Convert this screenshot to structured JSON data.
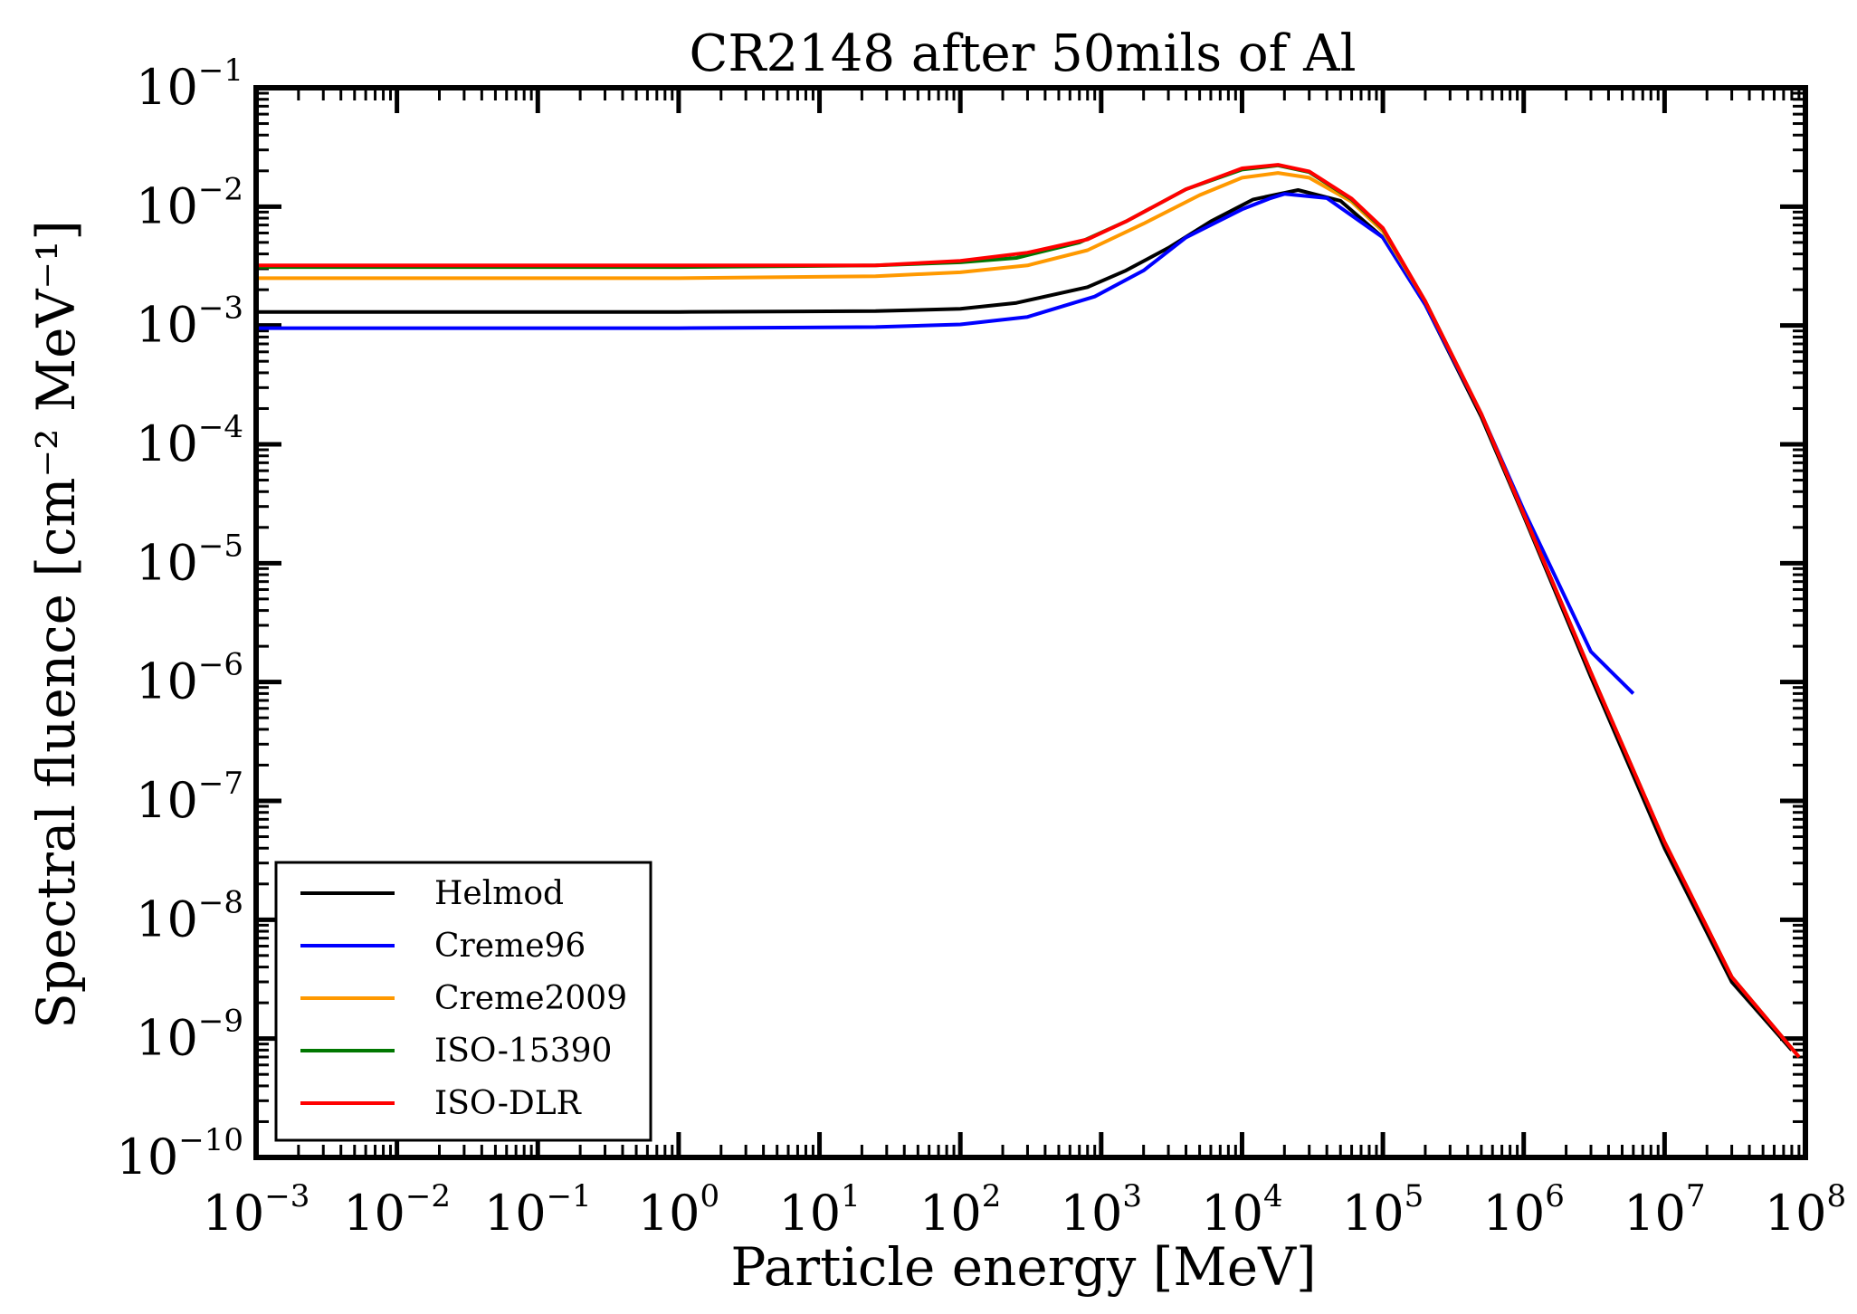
{
  "chart_data": {
    "type": "line",
    "title": "CR2148 after 50mils of Al",
    "xlabel": "Particle energy [MeV]",
    "ylabel": "Spectral fluence [cm⁻² MeV⁻¹]",
    "x_scale": "log",
    "y_scale": "log",
    "xlim": [
      0.001,
      100000000
    ],
    "ylim": [
      1e-10,
      0.1
    ],
    "x_ticks": [
      {
        "base": "10",
        "exp": "−3",
        "value": 0.001
      },
      {
        "base": "10",
        "exp": "−2",
        "value": 0.01
      },
      {
        "base": "10",
        "exp": "−1",
        "value": 0.1
      },
      {
        "base": "10",
        "exp": "0",
        "value": 1
      },
      {
        "base": "10",
        "exp": "1",
        "value": 10
      },
      {
        "base": "10",
        "exp": "2",
        "value": 100
      },
      {
        "base": "10",
        "exp": "3",
        "value": 1000
      },
      {
        "base": "10",
        "exp": "4",
        "value": 10000
      },
      {
        "base": "10",
        "exp": "5",
        "value": 100000
      },
      {
        "base": "10",
        "exp": "6",
        "value": 1000000
      },
      {
        "base": "10",
        "exp": "7",
        "value": 10000000
      },
      {
        "base": "10",
        "exp": "8",
        "value": 100000000
      }
    ],
    "y_ticks": [
      {
        "base": "10",
        "exp": "−1",
        "value": 0.1
      },
      {
        "base": "10",
        "exp": "−2",
        "value": 0.01
      },
      {
        "base": "10",
        "exp": "−3",
        "value": 0.001
      },
      {
        "base": "10",
        "exp": "−4",
        "value": 0.0001
      },
      {
        "base": "10",
        "exp": "−5",
        "value": 1e-05
      },
      {
        "base": "10",
        "exp": "−6",
        "value": 1e-06
      },
      {
        "base": "10",
        "exp": "−7",
        "value": 1e-07
      },
      {
        "base": "10",
        "exp": "−8",
        "value": 1e-08
      },
      {
        "base": "10",
        "exp": "−9",
        "value": 1e-09
      },
      {
        "base": "10",
        "exp": "−10",
        "value": 1e-10
      }
    ],
    "grid": false,
    "legend_position": "bottom-left",
    "series": [
      {
        "name": "Helmod",
        "color": "#000000",
        "points": [
          [
            0.001,
            0.0013
          ],
          [
            1,
            0.0013
          ],
          [
            25,
            0.00132
          ],
          [
            100,
            0.00138
          ],
          [
            250,
            0.00155
          ],
          [
            800,
            0.0021
          ],
          [
            1500,
            0.0029
          ],
          [
            3000,
            0.0045
          ],
          [
            6000,
            0.0075
          ],
          [
            12000,
            0.0115
          ],
          [
            25000,
            0.0138
          ],
          [
            50000,
            0.0112
          ],
          [
            100000,
            0.0055
          ],
          [
            200000,
            0.0015
          ],
          [
            500000,
            0.00017
          ],
          [
            1000000,
            2.5e-05
          ],
          [
            3000000,
            1.1e-06
          ],
          [
            10000000,
            4e-08
          ],
          [
            30000000,
            3e-09
          ],
          [
            80000000,
            8e-10
          ]
        ]
      },
      {
        "name": "Creme96",
        "color": "#0000ff",
        "points": [
          [
            0.001,
            0.00095
          ],
          [
            1,
            0.00095
          ],
          [
            25,
            0.00097
          ],
          [
            100,
            0.00102
          ],
          [
            300,
            0.00118
          ],
          [
            900,
            0.00175
          ],
          [
            2000,
            0.0029
          ],
          [
            4000,
            0.0055
          ],
          [
            10000,
            0.0095
          ],
          [
            16000,
            0.0118
          ],
          [
            20000,
            0.0128
          ],
          [
            40000,
            0.0118
          ],
          [
            100000,
            0.0055
          ],
          [
            200000,
            0.0015
          ],
          [
            500000,
            0.00018
          ],
          [
            1000000,
            2.8e-05
          ],
          [
            3000000,
            1.8e-06
          ],
          [
            6000000,
            8e-07
          ]
        ]
      },
      {
        "name": "Creme2009",
        "color": "#ff9900",
        "points": [
          [
            0.001,
            0.0025
          ],
          [
            1,
            0.0025
          ],
          [
            25,
            0.0026
          ],
          [
            100,
            0.0028
          ],
          [
            300,
            0.0032
          ],
          [
            800,
            0.0043
          ],
          [
            2000,
            0.0072
          ],
          [
            5000,
            0.0125
          ],
          [
            10000,
            0.0175
          ],
          [
            18000,
            0.0192
          ],
          [
            30000,
            0.0175
          ],
          [
            60000,
            0.011
          ],
          [
            100000,
            0.0062
          ],
          [
            200000,
            0.0016
          ],
          [
            500000,
            0.00018
          ],
          [
            1000000,
            2.6e-05
          ],
          [
            3000000,
            1.2e-06
          ],
          [
            10000000,
            4.5e-08
          ],
          [
            30000000,
            3.3e-09
          ],
          [
            90000000,
            7e-10
          ]
        ]
      },
      {
        "name": "ISO-15390",
        "color": "#007700",
        "points": [
          [
            0.001,
            0.0031
          ],
          [
            1,
            0.0031
          ],
          [
            25,
            0.0032
          ],
          [
            100,
            0.0034
          ],
          [
            250,
            0.0037
          ],
          [
            700,
            0.005
          ],
          [
            1500,
            0.0075
          ],
          [
            4000,
            0.014
          ],
          [
            10000,
            0.0205
          ],
          [
            18000,
            0.0222
          ],
          [
            30000,
            0.0195
          ],
          [
            60000,
            0.0115
          ],
          [
            100000,
            0.0065
          ],
          [
            200000,
            0.0016
          ],
          [
            500000,
            0.00018
          ],
          [
            1000000,
            2.6e-05
          ],
          [
            3000000,
            1.2e-06
          ],
          [
            10000000,
            4.5e-08
          ],
          [
            30000000,
            3.3e-09
          ],
          [
            90000000,
            7e-10
          ]
        ]
      },
      {
        "name": "ISO-DLR",
        "color": "#ff0000",
        "points": [
          [
            0.001,
            0.0032
          ],
          [
            1,
            0.0032
          ],
          [
            25,
            0.0032
          ],
          [
            100,
            0.0035
          ],
          [
            300,
            0.0041
          ],
          [
            800,
            0.0053
          ],
          [
            1500,
            0.0075
          ],
          [
            4000,
            0.014
          ],
          [
            10000,
            0.021
          ],
          [
            18000,
            0.0225
          ],
          [
            30000,
            0.0198
          ],
          [
            60000,
            0.0117
          ],
          [
            100000,
            0.0066
          ],
          [
            200000,
            0.0016
          ],
          [
            500000,
            0.00018
          ],
          [
            1000000,
            2.6e-05
          ],
          [
            3000000,
            1.2e-06
          ],
          [
            10000000,
            4.5e-08
          ],
          [
            30000000,
            3.3e-09
          ],
          [
            90000000,
            7e-10
          ]
        ]
      }
    ]
  }
}
